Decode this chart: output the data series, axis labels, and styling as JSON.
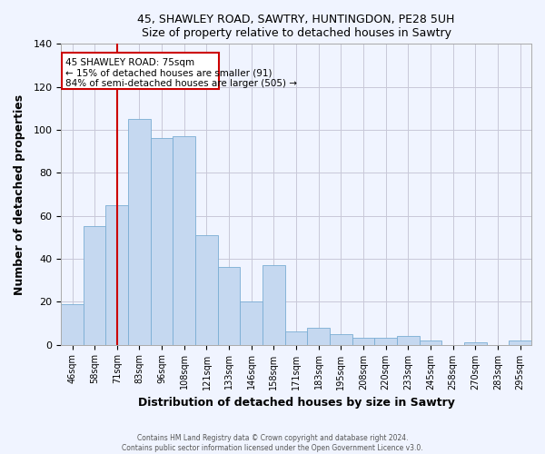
{
  "title1": "45, SHAWLEY ROAD, SAWTRY, HUNTINGDON, PE28 5UH",
  "title2": "Size of property relative to detached houses in Sawtry",
  "xlabel": "Distribution of detached houses by size in Sawtry",
  "ylabel": "Number of detached properties",
  "bar_labels": [
    "46sqm",
    "58sqm",
    "71sqm",
    "83sqm",
    "96sqm",
    "108sqm",
    "121sqm",
    "133sqm",
    "146sqm",
    "158sqm",
    "171sqm",
    "183sqm",
    "195sqm",
    "208sqm",
    "220sqm",
    "233sqm",
    "245sqm",
    "258sqm",
    "270sqm",
    "283sqm",
    "295sqm"
  ],
  "bar_values": [
    19,
    55,
    65,
    105,
    96,
    97,
    51,
    36,
    20,
    37,
    6,
    8,
    5,
    3,
    3,
    4,
    2,
    0,
    1,
    0,
    2
  ],
  "bar_color": "#c5d8f0",
  "bar_edgecolor": "#7aadd4",
  "property_line_label": "45 SHAWLEY ROAD: 75sqm",
  "annotation_line1": "← 15% of detached houses are smaller (91)",
  "annotation_line2": "84% of semi-detached houses are larger (505) →",
  "box_color": "#cc0000",
  "ylim": [
    0,
    140
  ],
  "footer1": "Contains HM Land Registry data © Crown copyright and database right 2024.",
  "footer2": "Contains public sector information licensed under the Open Government Licence v3.0.",
  "background_color": "#f0f4ff",
  "grid_color": "#c8c8d8"
}
